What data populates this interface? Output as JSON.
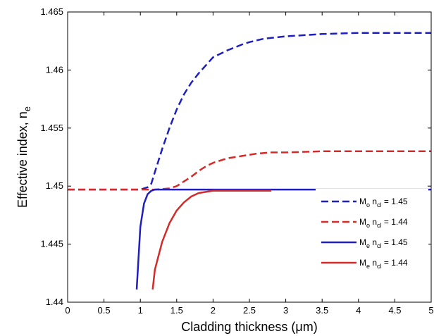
{
  "chart_data": {
    "type": "line",
    "xlabel": {
      "main": "Cladding thickness (",
      "symbol": "μ",
      "unit_rest": "m)"
    },
    "ylabel": {
      "main": "Effective index, n",
      "sub": "e"
    },
    "xlim": [
      0,
      5
    ],
    "ylim": [
      1.44,
      1.465
    ],
    "x_ticks": [
      "0",
      "0.5",
      "1",
      "1.5",
      "2",
      "2.5",
      "3",
      "3.5",
      "4",
      "4.5",
      "5"
    ],
    "y_ticks": [
      "1.44",
      "1.445",
      "1.45",
      "1.455",
      "1.46",
      "1.465"
    ],
    "grid": false,
    "legend_position": "bottom-right",
    "series": [
      {
        "legend": {
          "mode": "M",
          "mode_sub": "o",
          "n": " n",
          "n_sub": "cl",
          "value": " = 1.45"
        },
        "color": "#1f1fbf",
        "dash": "dashed",
        "x": [
          0,
          0.5,
          1.0,
          1.1,
          1.15,
          1.2,
          1.3,
          1.4,
          1.5,
          1.6,
          1.7,
          1.8,
          1.9,
          2.0,
          2.2,
          2.4,
          2.5,
          2.7,
          3.0,
          3.5,
          4.0,
          4.5,
          5.0
        ],
        "y": [
          1.4497,
          1.4497,
          1.4497,
          1.4499,
          1.4502,
          1.4512,
          1.4532,
          1.455,
          1.4566,
          1.4579,
          1.4589,
          1.4597,
          1.4604,
          1.4611,
          1.4617,
          1.4622,
          1.4624,
          1.4627,
          1.4629,
          1.4631,
          1.4632,
          1.4632,
          1.4632
        ]
      },
      {
        "legend": {
          "mode": "M",
          "mode_sub": "o",
          "n": " n",
          "n_sub": "cl",
          "value": " = 1.44"
        },
        "color": "#d42a2a",
        "dash": "dashed",
        "x": [
          0,
          0.5,
          1.0,
          1.2,
          1.4,
          1.5,
          1.6,
          1.7,
          1.8,
          1.9,
          2.0,
          2.2,
          2.4,
          2.6,
          2.8,
          3.0,
          3.5,
          4.0,
          4.5,
          5.0
        ],
        "y": [
          1.4497,
          1.4497,
          1.4497,
          1.4497,
          1.4498,
          1.45,
          1.4504,
          1.4508,
          1.4513,
          1.4517,
          1.452,
          1.4524,
          1.4526,
          1.4528,
          1.4529,
          1.4529,
          1.453,
          1.453,
          1.453,
          1.453
        ]
      },
      {
        "legend": {
          "mode": "M",
          "mode_sub": "e",
          "n": " n",
          "n_sub": "cl",
          "value": " = 1.45"
        },
        "color": "#1f1fbf",
        "dash": "solid",
        "x": [
          0.95,
          1.0,
          1.05,
          1.1,
          1.15,
          1.2,
          1.3,
          1.5,
          2.0,
          3.0,
          4.0,
          5.0
        ],
        "y": [
          1.4411,
          1.4465,
          1.4485,
          1.4493,
          1.4496,
          1.4497,
          1.4497,
          1.4497,
          1.4497,
          1.4497,
          1.4497,
          1.4497
        ]
      },
      {
        "legend": {
          "mode": "M",
          "mode_sub": "e",
          "n": " n",
          "n_sub": "cl",
          "value": " = 1.44"
        },
        "color": "#d42a2a",
        "dash": "solid",
        "x": [
          1.17,
          1.2,
          1.3,
          1.4,
          1.5,
          1.6,
          1.7,
          1.8,
          1.9,
          2.0,
          2.2,
          2.5,
          2.8
        ],
        "y": [
          1.4411,
          1.4428,
          1.4452,
          1.4468,
          1.4479,
          1.4486,
          1.4491,
          1.4494,
          1.4495,
          1.4496,
          1.4496,
          1.4496,
          1.4496
        ]
      }
    ]
  }
}
